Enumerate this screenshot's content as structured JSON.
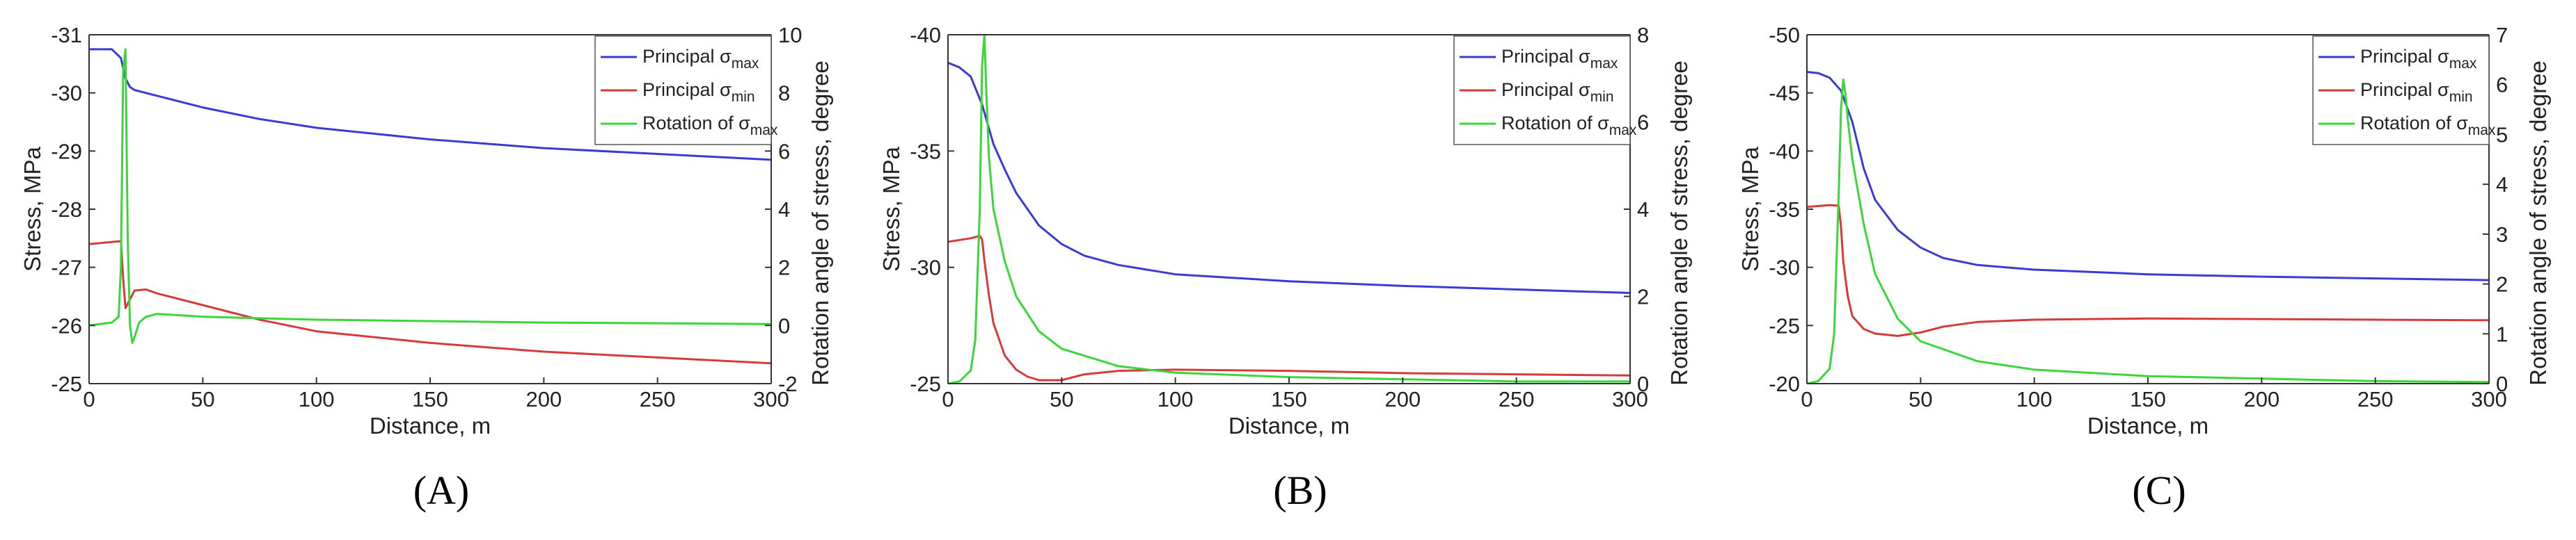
{
  "panels": [
    {
      "label": "(A)",
      "chart_data": {
        "type": "line",
        "xlabel": "Distance, m",
        "ylabel_left": "Stress, MPa",
        "ylabel_right": "Rotation angle of stress, degree",
        "xlim": [
          0,
          300
        ],
        "xticks": [
          0,
          50,
          100,
          150,
          200,
          250,
          300
        ],
        "ylim_left": [
          -25,
          -31
        ],
        "yticks_left": [
          -25,
          -26,
          -27,
          -28,
          -29,
          -30,
          -31
        ],
        "ylim_right": [
          -2,
          10
        ],
        "yticks_right": [
          -2,
          0,
          2,
          4,
          6,
          8,
          10
        ],
        "grid": false,
        "legend_position": "top-right",
        "legend": [
          {
            "prefix": "Principal σ",
            "sub": "max",
            "color": "#3a3ad6"
          },
          {
            "prefix": "Principal σ",
            "sub": "min",
            "color": "#d63a3a"
          },
          {
            "prefix": "Rotation of σ",
            "sub": "max",
            "color": "#3ad63a"
          }
        ],
        "series": [
          {
            "axis": "left",
            "color": "#3a3ad6",
            "x": [
              0,
              10,
              14,
              16,
              18,
              20,
              30,
              50,
              75,
              100,
              150,
              200,
              250,
              300
            ],
            "y": [
              -30.75,
              -30.75,
              -30.6,
              -30.25,
              -30.1,
              -30.05,
              -29.95,
              -29.75,
              -29.55,
              -29.4,
              -29.2,
              -29.05,
              -28.95,
              -28.85
            ]
          },
          {
            "axis": "left",
            "color": "#d63a3a",
            "x": [
              0,
              14,
              15,
              16,
              18,
              20,
              25,
              30,
              50,
              75,
              100,
              150,
              200,
              250,
              300
            ],
            "y": [
              -27.4,
              -27.45,
              -26.8,
              -26.3,
              -26.45,
              -26.6,
              -26.62,
              -26.55,
              -26.35,
              -26.1,
              -25.9,
              -25.7,
              -25.55,
              -25.45,
              -25.35
            ]
          },
          {
            "axis": "right",
            "color": "#3ad63a",
            "x": [
              0,
              10,
              13,
              14,
              15,
              16,
              17,
              18,
              19,
              20,
              22,
              25,
              30,
              50,
              100,
              200,
              300
            ],
            "y": [
              0,
              0.1,
              0.3,
              2,
              8.8,
              9.5,
              3,
              0,
              -0.6,
              -0.4,
              0.1,
              0.3,
              0.4,
              0.3,
              0.2,
              0.1,
              0.05
            ]
          }
        ]
      }
    },
    {
      "label": "(B)",
      "chart_data": {
        "type": "line",
        "xlabel": "Distance, m",
        "ylabel_left": "Stress, MPa",
        "ylabel_right": "Rotation angle of stress, degree",
        "xlim": [
          0,
          300
        ],
        "xticks": [
          0,
          50,
          100,
          150,
          200,
          250,
          300
        ],
        "ylim_left": [
          -25,
          -40
        ],
        "yticks_left": [
          -25,
          -30,
          -35,
          -40
        ],
        "ylim_right": [
          0,
          8
        ],
        "yticks_right": [
          0,
          2,
          4,
          6,
          8
        ],
        "grid": false,
        "legend_position": "top-right",
        "legend": [
          {
            "prefix": "Principal σ",
            "sub": "max",
            "color": "#3a3ad6"
          },
          {
            "prefix": "Principal σ",
            "sub": "min",
            "color": "#d63a3a"
          },
          {
            "prefix": "Rotation of σ",
            "sub": "max",
            "color": "#3ad63a"
          }
        ],
        "series": [
          {
            "axis": "left",
            "color": "#3a3ad6",
            "x": [
              0,
              5,
              10,
              15,
              20,
              25,
              30,
              40,
              50,
              60,
              75,
              100,
              150,
              200,
              250,
              300
            ],
            "y": [
              -38.8,
              -38.6,
              -38.2,
              -37,
              -35.3,
              -34.2,
              -33.2,
              -31.8,
              -31,
              -30.5,
              -30.1,
              -29.7,
              -29.4,
              -29.2,
              -29.05,
              -28.9
            ]
          },
          {
            "axis": "left",
            "color": "#d63a3a",
            "x": [
              0,
              10,
              14,
              15,
              16,
              18,
              20,
              25,
              30,
              35,
              40,
              50,
              60,
              75,
              100,
              150,
              200,
              250,
              300
            ],
            "y": [
              -31.1,
              -31.25,
              -31.35,
              -31.2,
              -30.3,
              -28.8,
              -27.6,
              -26.2,
              -25.6,
              -25.3,
              -25.15,
              -25.15,
              -25.4,
              -25.55,
              -25.6,
              -25.55,
              -25.45,
              -25.4,
              -25.35
            ]
          },
          {
            "axis": "right",
            "color": "#3ad63a",
            "x": [
              0,
              5,
              10,
              12,
              14,
              15,
              16,
              17,
              18,
              20,
              25,
              30,
              40,
              50,
              75,
              100,
              150,
              200,
              250,
              300
            ],
            "y": [
              0,
              0.05,
              0.3,
              1,
              4,
              7.3,
              8,
              6.5,
              5.2,
              4,
              2.8,
              2,
              1.2,
              0.8,
              0.4,
              0.25,
              0.15,
              0.1,
              0.05,
              0.05
            ]
          }
        ]
      }
    },
    {
      "label": "(C)",
      "chart_data": {
        "type": "line",
        "xlabel": "Distance, m",
        "ylabel_left": "Stress, MPa",
        "ylabel_right": "Rotation angle of stress, degree",
        "xlim": [
          0,
          300
        ],
        "xticks": [
          0,
          50,
          100,
          150,
          200,
          250,
          300
        ],
        "ylim_left": [
          -20,
          -50
        ],
        "yticks_left": [
          -20,
          -25,
          -30,
          -35,
          -40,
          -45,
          -50
        ],
        "ylim_right": [
          0,
          7
        ],
        "yticks_right": [
          0,
          1,
          2,
          3,
          4,
          5,
          6,
          7
        ],
        "grid": false,
        "legend_position": "top-right",
        "legend": [
          {
            "prefix": "Principal σ",
            "sub": "max",
            "color": "#3a3ad6"
          },
          {
            "prefix": "Principal σ",
            "sub": "min",
            "color": "#d63a3a"
          },
          {
            "prefix": "Rotation of σ",
            "sub": "max",
            "color": "#3ad63a"
          }
        ],
        "series": [
          {
            "axis": "left",
            "color": "#3a3ad6",
            "x": [
              0,
              5,
              10,
              15,
              20,
              25,
              30,
              40,
              50,
              60,
              75,
              100,
              150,
              200,
              250,
              300
            ],
            "y": [
              -46.8,
              -46.7,
              -46.3,
              -45.2,
              -42.5,
              -38.5,
              -35.8,
              -33.2,
              -31.7,
              -30.8,
              -30.2,
              -29.8,
              -29.4,
              -29.2,
              -29.05,
              -28.9
            ]
          },
          {
            "axis": "left",
            "color": "#d63a3a",
            "x": [
              0,
              10,
              14,
              15,
              16,
              18,
              20,
              25,
              30,
              40,
              50,
              60,
              75,
              100,
              150,
              200,
              250,
              300
            ],
            "y": [
              -35.2,
              -35.35,
              -35.3,
              -33.5,
              -30.5,
              -27.5,
              -25.8,
              -24.7,
              -24.3,
              -24.1,
              -24.4,
              -24.9,
              -25.3,
              -25.5,
              -25.6,
              -25.55,
              -25.5,
              -25.45
            ]
          },
          {
            "axis": "right",
            "color": "#3ad63a",
            "x": [
              0,
              5,
              10,
              12,
              14,
              15,
              16,
              17,
              18,
              20,
              25,
              30,
              40,
              50,
              75,
              100,
              150,
              200,
              250,
              300
            ],
            "y": [
              0,
              0.05,
              0.3,
              1,
              3.8,
              5.5,
              6.1,
              5.8,
              5.3,
              4.5,
              3.2,
              2.2,
              1.3,
              0.85,
              0.45,
              0.28,
              0.15,
              0.1,
              0.05,
              0.03
            ]
          }
        ]
      }
    }
  ]
}
